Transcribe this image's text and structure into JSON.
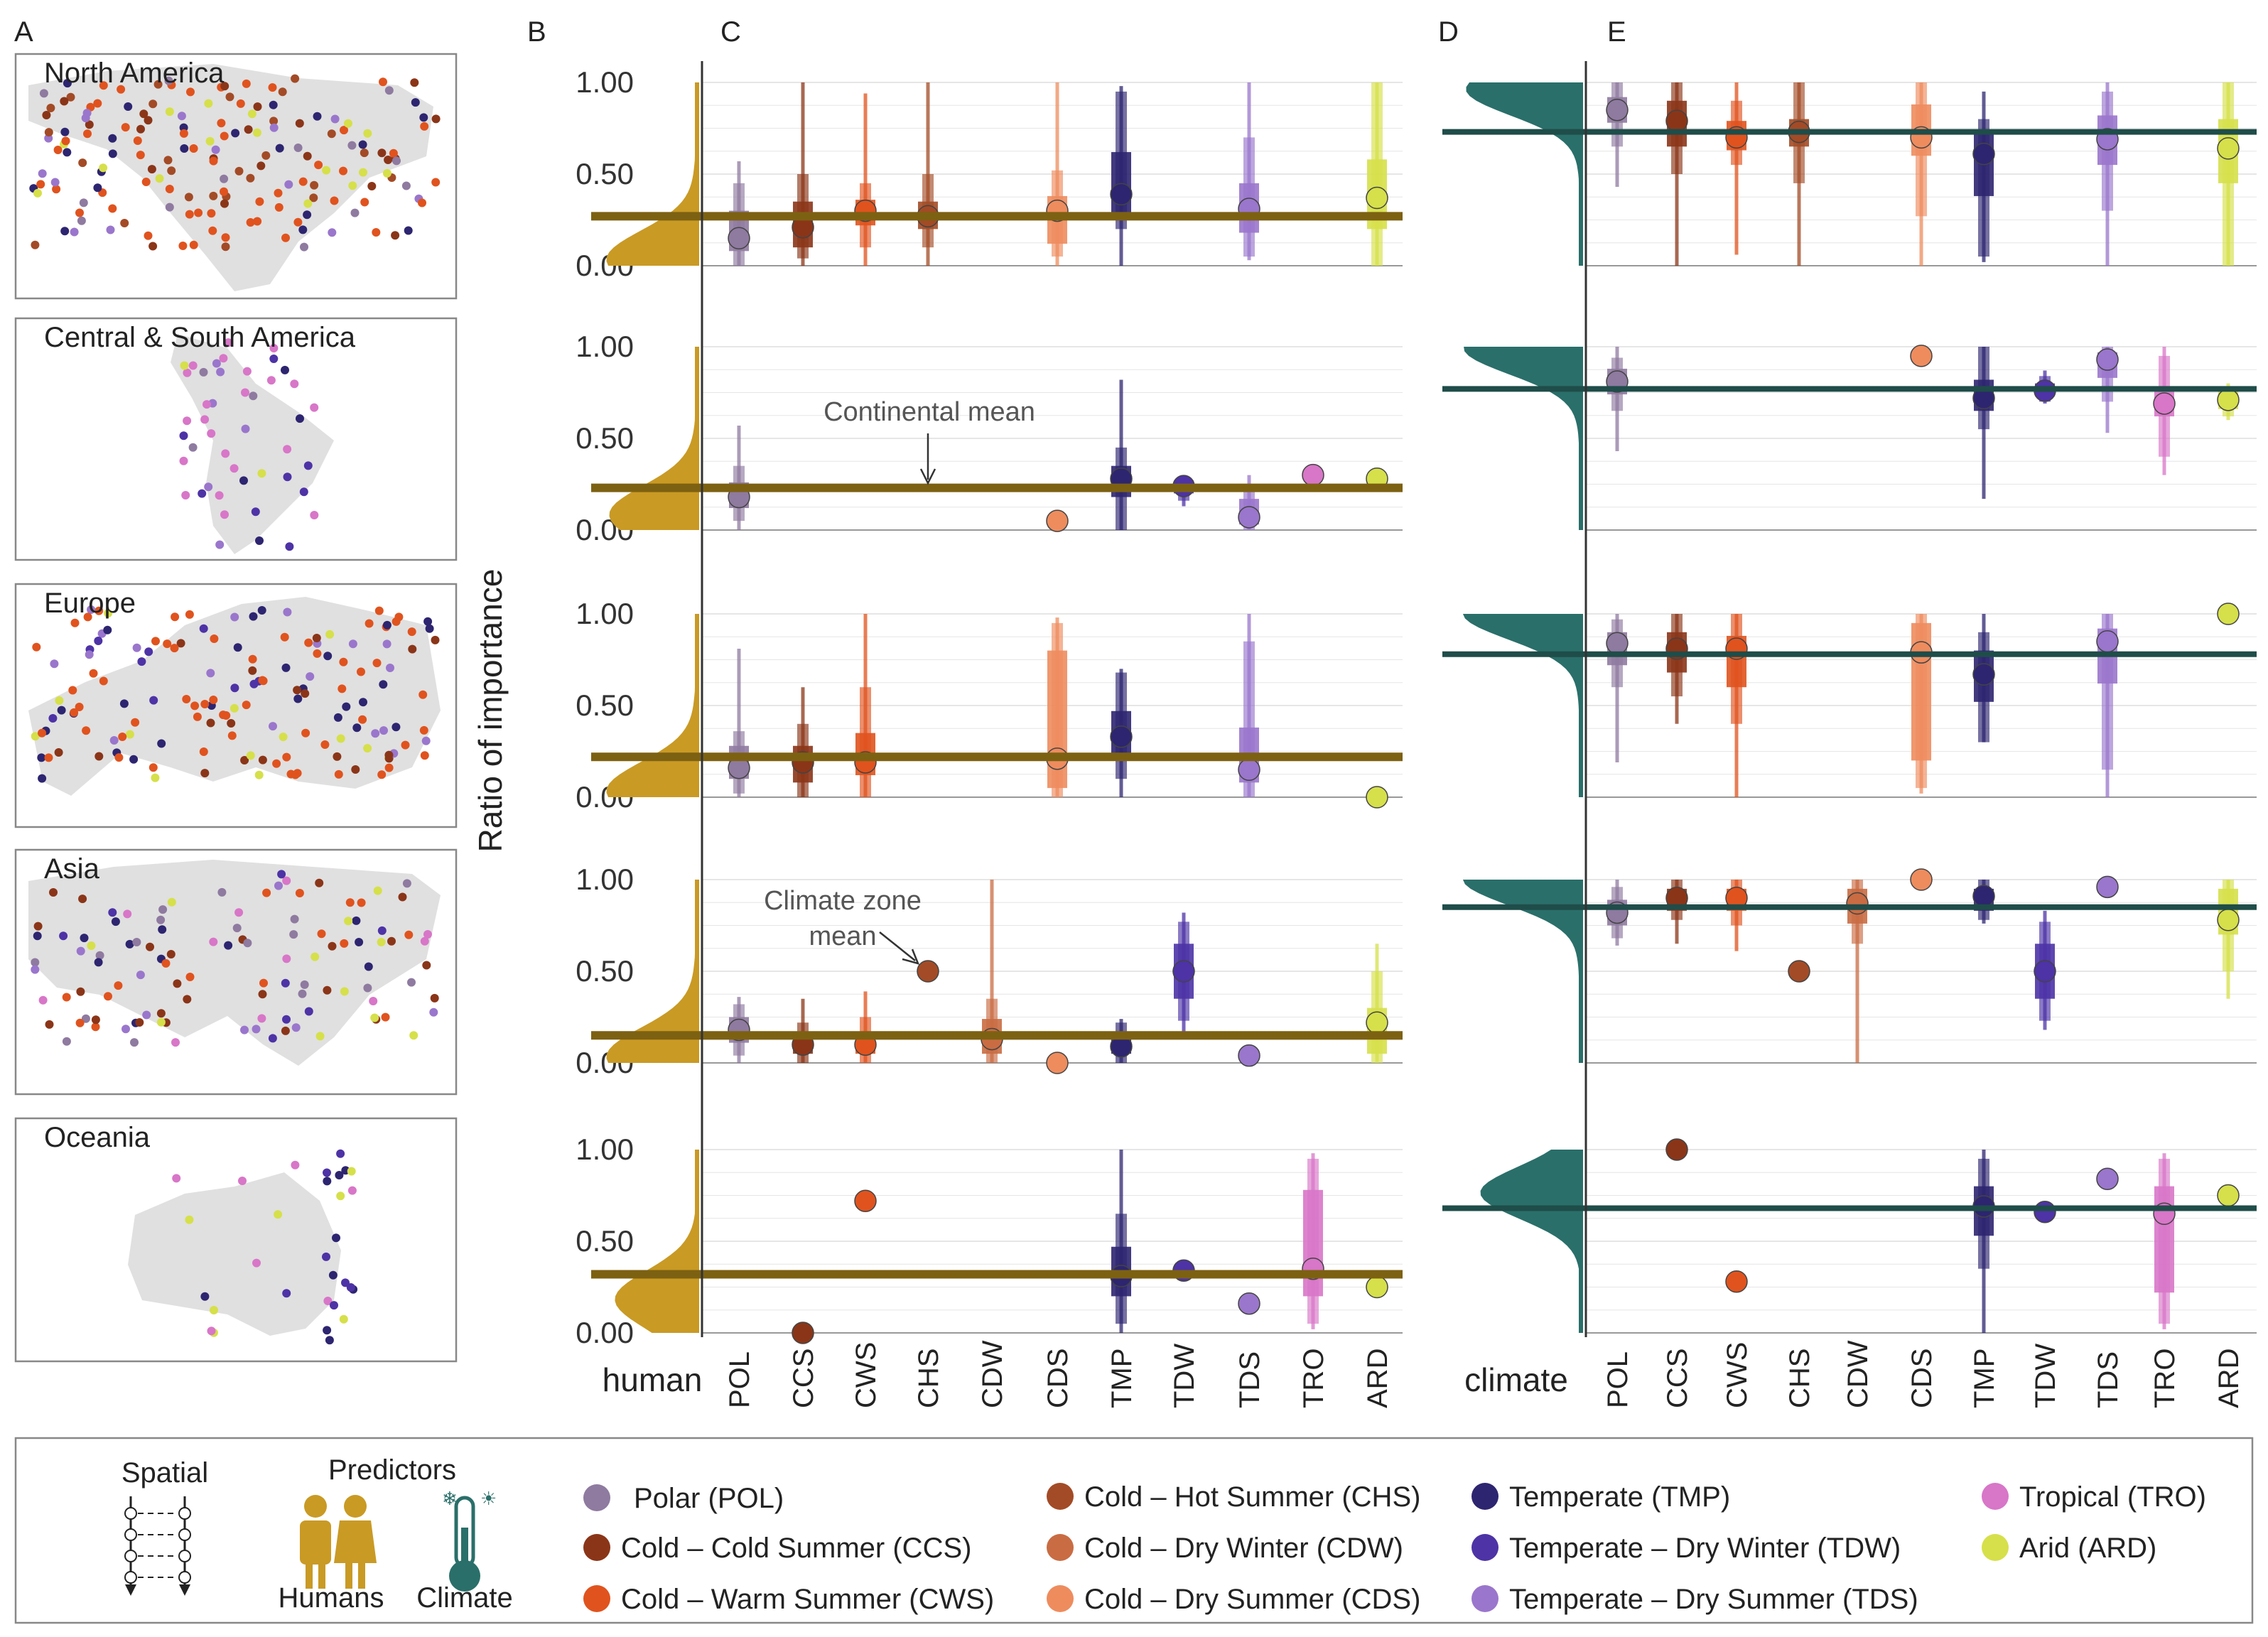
{
  "panel_letters": [
    "A",
    "B",
    "C",
    "D",
    "E"
  ],
  "y_axis_title": "Ratio of importance",
  "y_ticks": [
    "0.00",
    "0.50",
    "1.00"
  ],
  "human_label": "human",
  "climate_label": "climate",
  "annotations": {
    "continental_mean": "Continental mean",
    "climate_zone_mean_line1": "Climate zone",
    "climate_zone_mean_line2": "mean"
  },
  "colors": {
    "human": "#c99a24",
    "human_line": "#7d6112",
    "climate": "#2a6f6a",
    "climate_line": "#1f4d49",
    "map_land": "#e0e0e0",
    "axis": "#444444",
    "grid": "#e6e6e6"
  },
  "zones": [
    {
      "code": "POL",
      "name": "Polar (POL)",
      "color": "#8f7aa0"
    },
    {
      "code": "CCS",
      "name": "Cold – Cold Summer (CCS)",
      "color": "#8b3518"
    },
    {
      "code": "CWS",
      "name": "Cold – Warm Summer (CWS)",
      "color": "#e0531e"
    },
    {
      "code": "CHS",
      "name": "Cold – Hot Summer (CHS)",
      "color": "#a34b26"
    },
    {
      "code": "CDW",
      "name": "Cold – Dry Winter (CDW)",
      "color": "#c96c43"
    },
    {
      "code": "CDS",
      "name": "Cold – Dry Summer (CDS)",
      "color": "#ee8c5e"
    },
    {
      "code": "TMP",
      "name": "Temperate (TMP)",
      "color": "#2d2570"
    },
    {
      "code": "TDW",
      "name": "Temperate – Dry Winter (TDW)",
      "color": "#4d33a6"
    },
    {
      "code": "TDS",
      "name": "Temperate – Dry Summer (TDS)",
      "color": "#9a76cc"
    },
    {
      "code": "TRO",
      "name": "Tropical (TRO)",
      "color": "#d876c8"
    },
    {
      "code": "ARD",
      "name": "Arid (ARD)",
      "color": "#d6e04a"
    }
  ],
  "legend": {
    "spatial_title": "Spatial",
    "predictors_title": "Predictors",
    "humans_label": "Humans",
    "climate_label": "Climate"
  },
  "chart_data": {
    "type": "scatter",
    "description_type": "faceted point-range plot with density panels and maps",
    "ylim": [
      0,
      1
    ],
    "ylabel": "Ratio of importance",
    "categories": [
      "POL",
      "CCS",
      "CWS",
      "CHS",
      "CDW",
      "CDS",
      "TMP",
      "TDW",
      "TDS",
      "TRO",
      "ARD"
    ],
    "facets": [
      {
        "region": "North America",
        "human_mean": 0.27,
        "climate_mean": 0.73,
        "human": [
          {
            "zone": "POL",
            "mean": 0.15,
            "q25": 0.08,
            "q75": 0.3,
            "q05": 0.0,
            "q95": 0.45,
            "min": 0.0,
            "max": 0.57
          },
          {
            "zone": "CCS",
            "mean": 0.21,
            "q25": 0.1,
            "q75": 0.35,
            "q05": 0.04,
            "q95": 0.5,
            "min": 0.0,
            "max": 1.0
          },
          {
            "zone": "CWS",
            "mean": 0.3,
            "q25": 0.22,
            "q75": 0.36,
            "q05": 0.1,
            "q95": 0.45,
            "min": 0.0,
            "max": 0.94
          },
          {
            "zone": "CHS",
            "mean": 0.27,
            "q25": 0.2,
            "q75": 0.35,
            "q05": 0.1,
            "q95": 0.5,
            "min": 0.0,
            "max": 1.0
          },
          {
            "zone": "CDS",
            "mean": 0.3,
            "q25": 0.12,
            "q75": 0.38,
            "q05": 0.05,
            "q95": 0.52,
            "min": 0.0,
            "max": 1.0
          },
          {
            "zone": "TMP",
            "mean": 0.39,
            "q25": 0.28,
            "q75": 0.62,
            "q05": 0.2,
            "q95": 0.95,
            "min": 0.0,
            "max": 0.98
          },
          {
            "zone": "TDS",
            "mean": 0.31,
            "q25": 0.18,
            "q75": 0.45,
            "q05": 0.05,
            "q95": 0.7,
            "min": 0.03,
            "max": 1.0
          },
          {
            "zone": "ARD",
            "mean": 0.37,
            "q25": 0.2,
            "q75": 0.58,
            "q05": 0.0,
            "q95": 1.0,
            "min": 0.0,
            "max": 1.0
          }
        ],
        "climate": [
          {
            "zone": "POL",
            "mean": 0.85,
            "q25": 0.78,
            "q75": 0.92,
            "q05": 0.65,
            "q95": 1.0,
            "min": 0.43,
            "max": 1.0
          },
          {
            "zone": "CCS",
            "mean": 0.79,
            "q25": 0.65,
            "q75": 0.9,
            "q05": 0.5,
            "q95": 1.0,
            "min": 0.0,
            "max": 1.0
          },
          {
            "zone": "CWS",
            "mean": 0.7,
            "q25": 0.63,
            "q75": 0.79,
            "q05": 0.55,
            "q95": 0.9,
            "min": 0.06,
            "max": 1.0
          },
          {
            "zone": "CHS",
            "mean": 0.73,
            "q25": 0.65,
            "q75": 0.8,
            "q05": 0.45,
            "q95": 1.0,
            "min": 0.0,
            "max": 1.0
          },
          {
            "zone": "CDS",
            "mean": 0.7,
            "q25": 0.6,
            "q75": 0.88,
            "q05": 0.27,
            "q95": 1.0,
            "min": 0.0,
            "max": 1.0
          },
          {
            "zone": "TMP",
            "mean": 0.61,
            "q25": 0.38,
            "q75": 0.72,
            "q05": 0.05,
            "q95": 0.8,
            "min": 0.02,
            "max": 0.95
          },
          {
            "zone": "TDS",
            "mean": 0.69,
            "q25": 0.55,
            "q75": 0.82,
            "q05": 0.3,
            "q95": 0.95,
            "min": 0.0,
            "max": 1.0
          },
          {
            "zone": "ARD",
            "mean": 0.64,
            "q25": 0.45,
            "q75": 0.8,
            "q05": 0.0,
            "q95": 1.0,
            "min": 0.0,
            "max": 1.0
          }
        ]
      },
      {
        "region": "Central & South America",
        "human_mean": 0.23,
        "climate_mean": 0.77,
        "human": [
          {
            "zone": "POL",
            "mean": 0.18,
            "q25": 0.12,
            "q75": 0.26,
            "q05": 0.05,
            "q95": 0.35,
            "min": 0.0,
            "max": 0.57
          },
          {
            "zone": "CDS",
            "mean": 0.05
          },
          {
            "zone": "TMP",
            "mean": 0.28,
            "q25": 0.18,
            "q75": 0.35,
            "q05": 0.0,
            "q95": 0.45,
            "min": 0.0,
            "max": 0.82
          },
          {
            "zone": "TDW",
            "mean": 0.24,
            "q25": 0.2,
            "q75": 0.27,
            "q05": 0.16,
            "q95": 0.29,
            "min": 0.13,
            "max": 0.3
          },
          {
            "zone": "TDS",
            "mean": 0.07,
            "q25": 0.03,
            "q75": 0.17,
            "q05": 0.0,
            "q95": 0.25,
            "min": 0.0,
            "max": 0.3
          },
          {
            "zone": "TRO",
            "mean": 0.3
          },
          {
            "zone": "ARD",
            "mean": 0.28
          }
        ],
        "climate": [
          {
            "zone": "POL",
            "mean": 0.81,
            "q25": 0.74,
            "q75": 0.88,
            "q05": 0.65,
            "q95": 0.94,
            "min": 0.43,
            "max": 1.0
          },
          {
            "zone": "CDS",
            "mean": 0.95
          },
          {
            "zone": "TMP",
            "mean": 0.72,
            "q25": 0.65,
            "q75": 0.82,
            "q05": 0.55,
            "q95": 1.0,
            "min": 0.17,
            "max": 1.0
          },
          {
            "zone": "TDW",
            "mean": 0.76,
            "q25": 0.73,
            "q75": 0.8,
            "q05": 0.7,
            "q95": 0.84,
            "min": 0.69,
            "max": 0.87
          },
          {
            "zone": "TDS",
            "mean": 0.93,
            "q25": 0.83,
            "q75": 0.97,
            "q05": 0.7,
            "q95": 1.0,
            "min": 0.53,
            "max": 1.0
          },
          {
            "zone": "TRO",
            "mean": 0.69,
            "q25": 0.62,
            "q75": 0.78,
            "q05": 0.4,
            "q95": 0.95,
            "min": 0.3,
            "max": 1.0
          },
          {
            "zone": "ARD",
            "mean": 0.71,
            "q25": 0.66,
            "q75": 0.76,
            "q05": 0.62,
            "q95": 0.78,
            "min": 0.6,
            "max": 0.8
          }
        ]
      },
      {
        "region": "Europe",
        "human_mean": 0.22,
        "climate_mean": 0.78,
        "human": [
          {
            "zone": "POL",
            "mean": 0.16,
            "q25": 0.1,
            "q75": 0.28,
            "q05": 0.02,
            "q95": 0.36,
            "min": 0.0,
            "max": 0.81
          },
          {
            "zone": "CCS",
            "mean": 0.19,
            "q25": 0.08,
            "q75": 0.28,
            "q05": 0.0,
            "q95": 0.4,
            "min": 0.0,
            "max": 0.6
          },
          {
            "zone": "CWS",
            "mean": 0.19,
            "q25": 0.12,
            "q75": 0.35,
            "q05": 0.0,
            "q95": 0.6,
            "min": 0.0,
            "max": 1.0
          },
          {
            "zone": "CDS",
            "mean": 0.21,
            "q25": 0.05,
            "q75": 0.8,
            "q05": 0.0,
            "q95": 0.95,
            "min": 0.0,
            "max": 0.98
          },
          {
            "zone": "TMP",
            "mean": 0.33,
            "q25": 0.2,
            "q75": 0.47,
            "q05": 0.1,
            "q95": 0.68,
            "min": 0.0,
            "max": 0.7
          },
          {
            "zone": "TDS",
            "mean": 0.15,
            "q25": 0.08,
            "q75": 0.38,
            "q05": 0.0,
            "q95": 0.85,
            "min": 0.0,
            "max": 1.0
          },
          {
            "zone": "ARD",
            "mean": 0.0
          }
        ],
        "climate": [
          {
            "zone": "POL",
            "mean": 0.84,
            "q25": 0.72,
            "q75": 0.9,
            "q05": 0.6,
            "q95": 0.97,
            "min": 0.19,
            "max": 1.0
          },
          {
            "zone": "CCS",
            "mean": 0.81,
            "q25": 0.68,
            "q75": 0.9,
            "q05": 0.55,
            "q95": 1.0,
            "min": 0.4,
            "max": 1.0
          },
          {
            "zone": "CWS",
            "mean": 0.81,
            "q25": 0.6,
            "q75": 0.88,
            "q05": 0.4,
            "q95": 1.0,
            "min": 0.0,
            "max": 1.0
          },
          {
            "zone": "CDS",
            "mean": 0.79,
            "q25": 0.2,
            "q75": 0.95,
            "q05": 0.05,
            "q95": 1.0,
            "min": 0.02,
            "max": 1.0
          },
          {
            "zone": "TMP",
            "mean": 0.67,
            "q25": 0.52,
            "q75": 0.8,
            "q05": 0.3,
            "q95": 0.9,
            "min": 0.3,
            "max": 1.0
          },
          {
            "zone": "TDS",
            "mean": 0.85,
            "q25": 0.62,
            "q75": 0.92,
            "q05": 0.15,
            "q95": 1.0,
            "min": 0.0,
            "max": 1.0
          },
          {
            "zone": "ARD",
            "mean": 1.0
          }
        ]
      },
      {
        "region": "Asia",
        "human_mean": 0.15,
        "climate_mean": 0.85,
        "human": [
          {
            "zone": "POL",
            "mean": 0.18,
            "q25": 0.11,
            "q75": 0.25,
            "q05": 0.04,
            "q95": 0.32,
            "min": 0.0,
            "max": 0.36
          },
          {
            "zone": "CCS",
            "mean": 0.1,
            "q25": 0.05,
            "q75": 0.17,
            "q05": 0.0,
            "q95": 0.22,
            "min": 0.0,
            "max": 0.35
          },
          {
            "zone": "CWS",
            "mean": 0.1,
            "q25": 0.05,
            "q75": 0.17,
            "q05": 0.0,
            "q95": 0.25,
            "min": 0.0,
            "max": 0.39
          },
          {
            "zone": "CHS",
            "mean": 0.5
          },
          {
            "zone": "CDW",
            "mean": 0.13,
            "q25": 0.05,
            "q75": 0.24,
            "q05": 0.0,
            "q95": 0.35,
            "min": 0.0,
            "max": 1.0
          },
          {
            "zone": "CDS",
            "mean": 0.0
          },
          {
            "zone": "TMP",
            "mean": 0.09,
            "q25": 0.05,
            "q75": 0.17,
            "q05": 0.0,
            "q95": 0.22,
            "min": 0.0,
            "max": 0.24
          },
          {
            "zone": "TDW",
            "mean": 0.5,
            "q25": 0.35,
            "q75": 0.65,
            "q05": 0.23,
            "q95": 0.77,
            "min": 0.17,
            "max": 0.82
          },
          {
            "zone": "TDS",
            "mean": 0.04,
            "q25": 0.02,
            "q75": 0.07,
            "q05": 0.0,
            "q95": 0.09,
            "min": 0.0,
            "max": 0.1
          },
          {
            "zone": "ARD",
            "mean": 0.22,
            "q25": 0.05,
            "q75": 0.3,
            "q05": 0.0,
            "q95": 0.5,
            "min": 0.0,
            "max": 0.65
          }
        ],
        "climate": [
          {
            "zone": "POL",
            "mean": 0.82,
            "q25": 0.75,
            "q75": 0.89,
            "q05": 0.68,
            "q95": 0.96,
            "min": 0.64,
            "max": 1.0
          },
          {
            "zone": "CCS",
            "mean": 0.9,
            "q25": 0.83,
            "q75": 0.95,
            "q05": 0.78,
            "q95": 1.0,
            "min": 0.65,
            "max": 1.0
          },
          {
            "zone": "CWS",
            "mean": 0.9,
            "q25": 0.83,
            "q75": 0.95,
            "q05": 0.75,
            "q95": 1.0,
            "min": 0.61,
            "max": 1.0
          },
          {
            "zone": "CHS",
            "mean": 0.5
          },
          {
            "zone": "CDW",
            "mean": 0.87,
            "q25": 0.76,
            "q75": 0.95,
            "q05": 0.65,
            "q95": 1.0,
            "min": 0.0,
            "max": 1.0
          },
          {
            "zone": "CDS",
            "mean": 1.0
          },
          {
            "zone": "TMP",
            "mean": 0.91,
            "q25": 0.83,
            "q75": 0.95,
            "q05": 0.78,
            "q95": 1.0,
            "min": 0.76,
            "max": 1.0
          },
          {
            "zone": "TDW",
            "mean": 0.5,
            "q25": 0.35,
            "q75": 0.65,
            "q05": 0.23,
            "q95": 0.77,
            "min": 0.18,
            "max": 0.83
          },
          {
            "zone": "TDS",
            "mean": 0.96,
            "q25": 0.93,
            "q75": 0.98,
            "q05": 0.91,
            "q95": 1.0,
            "min": 0.9,
            "max": 1.0
          },
          {
            "zone": "ARD",
            "mean": 0.78,
            "q25": 0.7,
            "q75": 0.95,
            "q05": 0.5,
            "q95": 1.0,
            "min": 0.35,
            "max": 1.0
          }
        ]
      },
      {
        "region": "Oceania",
        "human_mean": 0.32,
        "climate_mean": 0.68,
        "human": [
          {
            "zone": "CCS",
            "mean": 0.0
          },
          {
            "zone": "CWS",
            "mean": 0.72
          },
          {
            "zone": "TMP",
            "mean": 0.31,
            "q25": 0.2,
            "q75": 0.47,
            "q05": 0.05,
            "q95": 0.65,
            "min": 0.0,
            "max": 1.0
          },
          {
            "zone": "TDW",
            "mean": 0.34
          },
          {
            "zone": "TDS",
            "mean": 0.16
          },
          {
            "zone": "TRO",
            "mean": 0.35,
            "q25": 0.2,
            "q75": 0.78,
            "q05": 0.05,
            "q95": 0.95,
            "min": 0.02,
            "max": 0.98
          },
          {
            "zone": "ARD",
            "mean": 0.25
          }
        ],
        "climate": [
          {
            "zone": "CCS",
            "mean": 1.0
          },
          {
            "zone": "CWS",
            "mean": 0.28
          },
          {
            "zone": "TMP",
            "mean": 0.69,
            "q25": 0.53,
            "q75": 0.8,
            "q05": 0.35,
            "q95": 0.95,
            "min": 0.0,
            "max": 1.0
          },
          {
            "zone": "TDW",
            "mean": 0.66
          },
          {
            "zone": "TDS",
            "mean": 0.84
          },
          {
            "zone": "TRO",
            "mean": 0.65,
            "q25": 0.22,
            "q75": 0.8,
            "q05": 0.05,
            "q95": 0.95,
            "min": 0.02,
            "max": 0.98
          },
          {
            "zone": "ARD",
            "mean": 0.75
          }
        ]
      }
    ]
  }
}
